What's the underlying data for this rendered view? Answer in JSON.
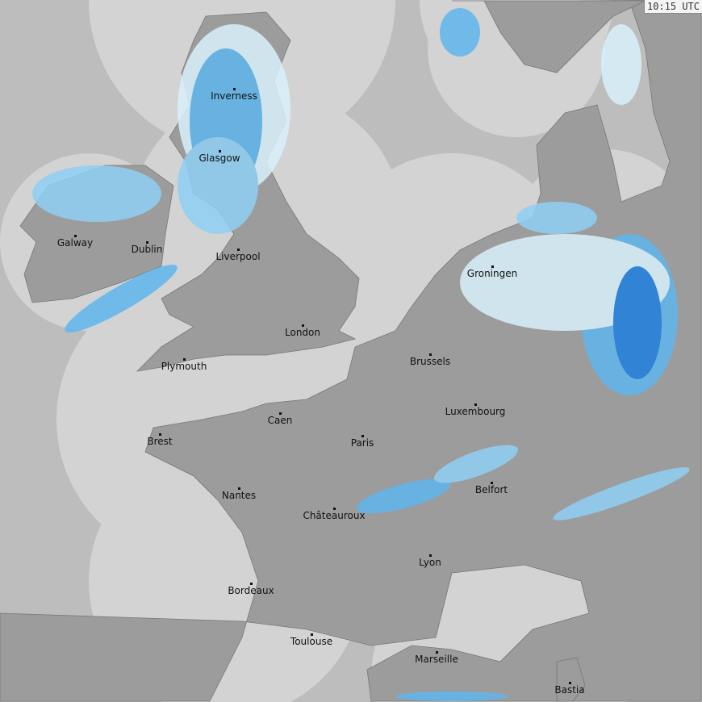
{
  "timestamp": "10:15 UTC",
  "colors": {
    "land": "#9c9c9c",
    "sea_covered": "#d3d3d3",
    "no_coverage": "#bdbdbd",
    "rain_light": "#d8f1fb",
    "rain_medium": "#5fb6ee",
    "rain_heavy": "#1e7fe0"
  },
  "cities": [
    {
      "name": "Inverness"
    },
    {
      "name": "Glasgow"
    },
    {
      "name": "Galway"
    },
    {
      "name": "Dublin"
    },
    {
      "name": "Liverpool"
    },
    {
      "name": "London"
    },
    {
      "name": "Plymouth"
    },
    {
      "name": "Brussels"
    },
    {
      "name": "Groningen"
    },
    {
      "name": "Luxembourg"
    },
    {
      "name": "Caen"
    },
    {
      "name": "Brest"
    },
    {
      "name": "Paris"
    },
    {
      "name": "Belfort"
    },
    {
      "name": "Nantes"
    },
    {
      "name": "Châteauroux"
    },
    {
      "name": "Lyon"
    },
    {
      "name": "Bordeaux"
    },
    {
      "name": "Toulouse"
    },
    {
      "name": "Marseille"
    },
    {
      "name": "Bastia"
    }
  ]
}
